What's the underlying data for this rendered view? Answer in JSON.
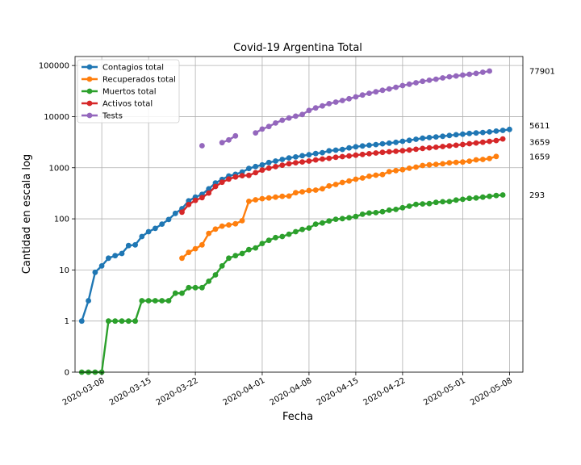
{
  "chart_data": {
    "type": "line",
    "title": "Covid-19 Argentina Total",
    "xlabel": "Fecha",
    "ylabel": "Cantidad en escala log",
    "y_scale": "symlog",
    "ylim": [
      0,
      150000
    ],
    "xlim": [
      "2020-03-04",
      "2020-05-10"
    ],
    "grid": true,
    "legend_position": "top-left",
    "x_ticks": [
      "2020-03-08",
      "2020-03-15",
      "2020-03-22",
      "2020-04-01",
      "2020-04-08",
      "2020-04-15",
      "2020-04-22",
      "2020-05-01",
      "2020-05-08"
    ],
    "y_ticks": [
      0,
      1,
      10,
      100,
      1000,
      10000,
      100000
    ],
    "y_tick_labels": [
      "0",
      "1",
      "10",
      "100",
      "1000",
      "10000",
      "100000"
    ],
    "series": [
      {
        "name": "Contagios total",
        "color": "#1f77b4",
        "start": "2020-03-05",
        "values": [
          1,
          2.5,
          9,
          12,
          17,
          19,
          21,
          30,
          31,
          45,
          56,
          65,
          79,
          97,
          128,
          158,
          225,
          266,
          301,
          387,
          502,
          589,
          690,
          745,
          820,
          966,
          1054,
          1133,
          1265,
          1353,
          1451,
          1554,
          1628,
          1715,
          1795,
          1894,
          1975,
          2142,
          2208,
          2277,
          2443,
          2571,
          2669,
          2758,
          2839,
          2941,
          3031,
          3144,
          3288,
          3435,
          3607,
          3780,
          3892,
          4003,
          4127,
          4285,
          4428,
          4532,
          4681,
          4783,
          4887,
          5020,
          5208,
          5371,
          5611
        ]
      },
      {
        "name": "Recuperados total",
        "color": "#ff7f0e",
        "start": "2020-03-20",
        "values": [
          17,
          22,
          26,
          31,
          52,
          63,
          72,
          76,
          80,
          92,
          220,
          236,
          248,
          256,
          266,
          276,
          279,
          325,
          338,
          358,
          365,
          388,
          440,
          471,
          515,
          551,
          596,
          630,
          681,
          714,
          737,
          840,
          880,
          916,
          976,
          1030,
          1107,
          1140,
          1162,
          1192,
          1245,
          1274,
          1292,
          1347,
          1426,
          1453,
          1519,
          1659
        ]
      },
      {
        "name": "Muertos total",
        "color": "#2ca02c",
        "start": "2020-03-05",
        "values": [
          0,
          0,
          0,
          0,
          1,
          1,
          1,
          1,
          1,
          2.5,
          2.5,
          2.5,
          2.5,
          2.5,
          3.5,
          3.5,
          4.5,
          4.5,
          4.5,
          6,
          8,
          12,
          17,
          19,
          21,
          25,
          27,
          33,
          38,
          43,
          45,
          50,
          56,
          62,
          66,
          79,
          83,
          91,
          98,
          101,
          105,
          111,
          123,
          130,
          132,
          138,
          148,
          153,
          165,
          177,
          192,
          196,
          199,
          210,
          216,
          218,
          233,
          241,
          252,
          256,
          266,
          276,
          286,
          293
        ]
      },
      {
        "name": "Activos total",
        "color": "#d62728",
        "start": "2020-03-20",
        "values": [
          135,
          190,
          230,
          260,
          320,
          430,
          520,
          600,
          660,
          700,
          710,
          800,
          900,
          980,
          1050,
          1120,
          1200,
          1250,
          1300,
          1350,
          1420,
          1480,
          1530,
          1600,
          1650,
          1700,
          1760,
          1820,
          1880,
          1940,
          2000,
          2050,
          2100,
          2150,
          2220,
          2300,
          2380,
          2450,
          2520,
          2600,
          2680,
          2760,
          2850,
          2950,
          3050,
          3150,
          3280,
          3400,
          3659
        ]
      },
      {
        "name": "Tests",
        "color": "#9467bd",
        "segments": [
          {
            "start": "2020-03-23",
            "values": [
              2700
            ]
          },
          {
            "start": "2020-03-26",
            "values": [
              3100,
              3500,
              4200
            ]
          },
          {
            "start": "2020-03-31",
            "values": [
              4800,
              5700,
              6400,
              7500,
              8500,
              9400,
              10200,
              11000,
              13200,
              14800,
              16200,
              17900,
              19200,
              20700,
              22400,
              24300,
              26500,
              28600,
              30600,
              32800,
              34800,
              37500,
              40500,
              43100,
              46000,
              49100,
              51400,
              54000,
              57200,
              60300,
              62500,
              65000,
              67400,
              70200,
              73700,
              77901
            ]
          }
        ]
      }
    ],
    "end_labels": [
      "77901",
      "5611",
      "3659",
      "1659",
      "293"
    ]
  }
}
